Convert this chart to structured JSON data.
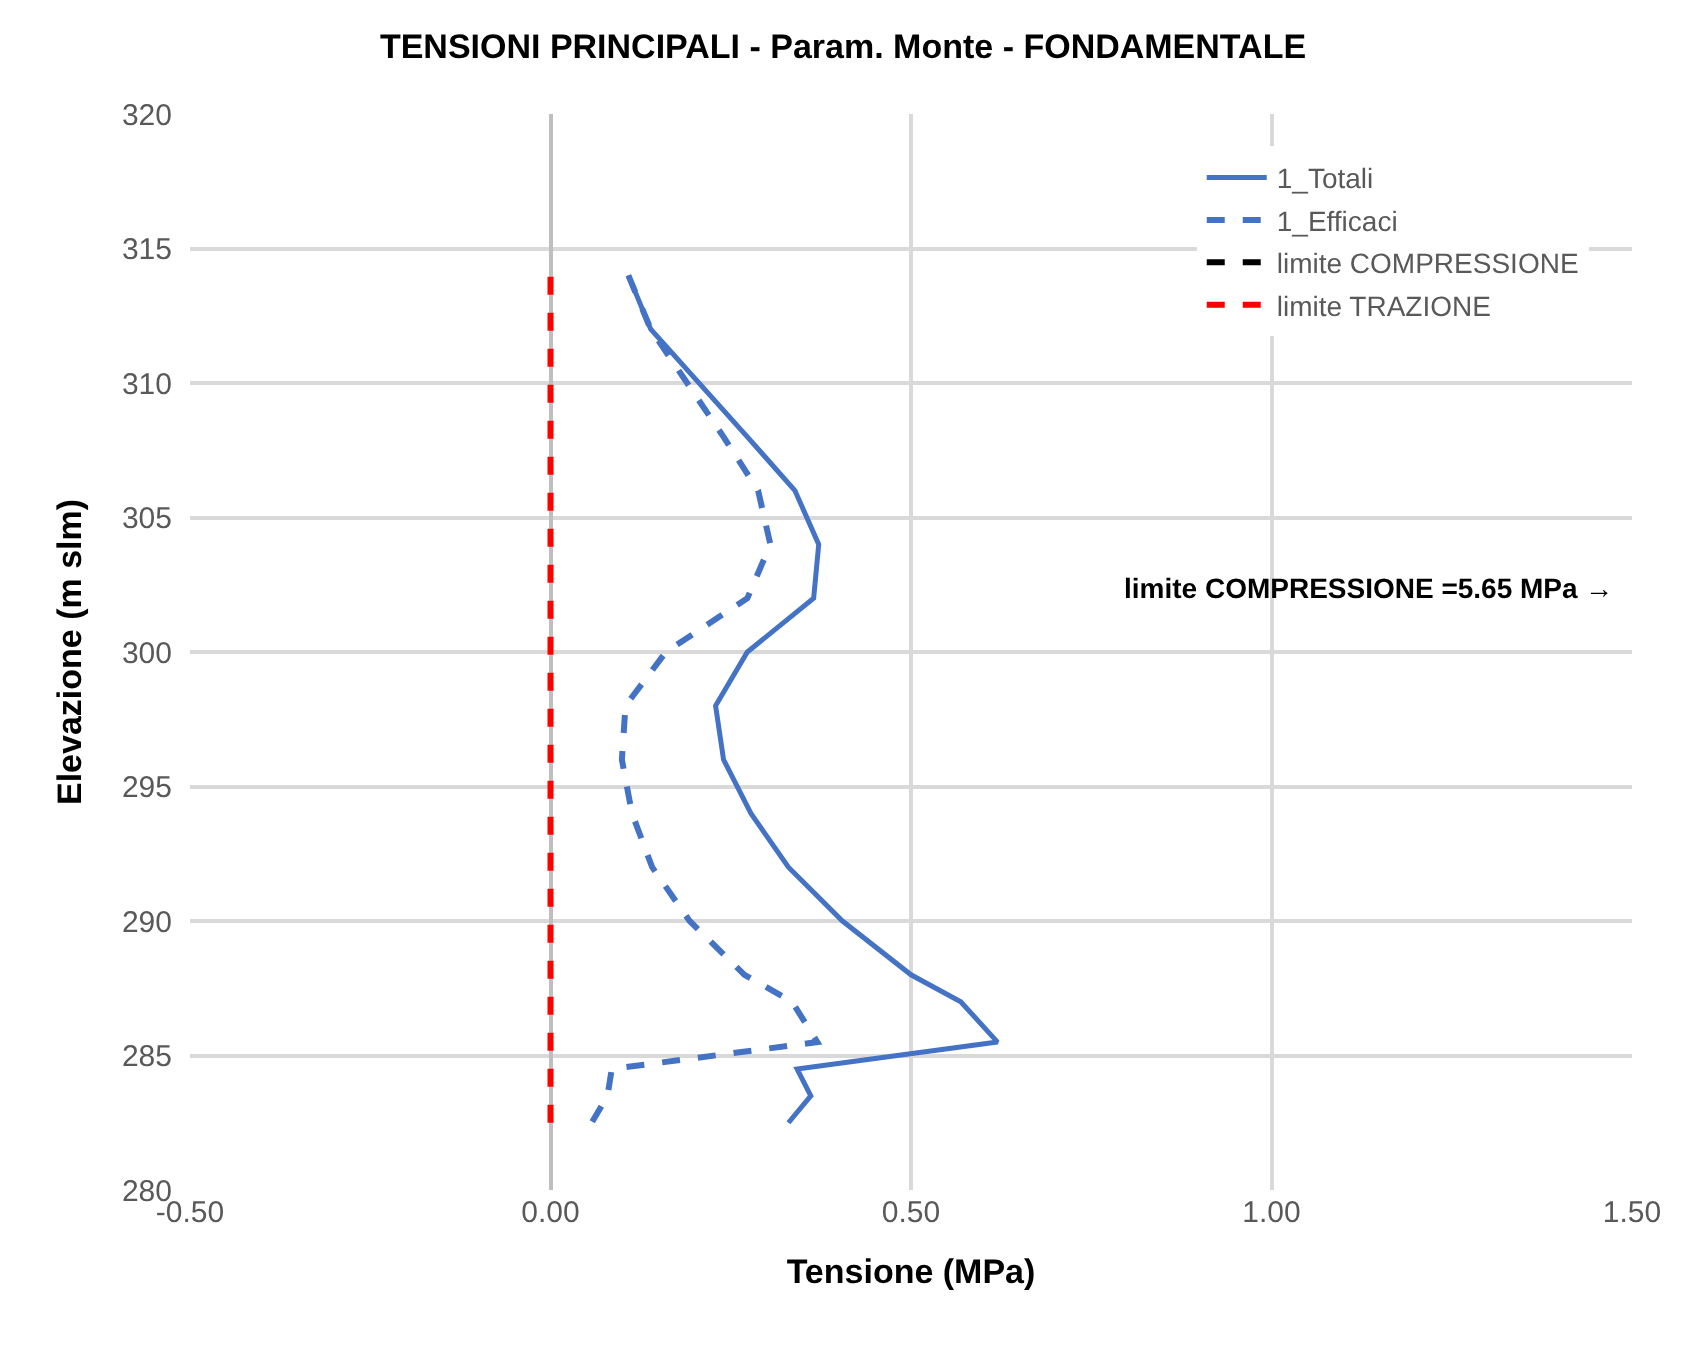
{
  "chart_data": {
    "type": "line",
    "title": "TENSIONI PRINCIPALI - Param. Monte - FONDAMENTALE",
    "xlabel": "Tensione (MPa)",
    "ylabel": "Elevazione (m slm)",
    "series": [
      {
        "name": "1_Totali",
        "color": "#4472c4",
        "line_style": "solid",
        "x": [
          0.108,
          0.139,
          0.273,
          0.339,
          0.372,
          0.365,
          0.273,
          0.229,
          0.24,
          0.278,
          0.33,
          0.405,
          0.5,
          0.569,
          0.62,
          0.342,
          0.361,
          0.33
        ],
        "values": [
          314,
          312,
          308,
          306,
          304,
          302,
          300,
          298,
          296,
          294,
          292,
          290,
          288,
          287,
          285.5,
          284.5,
          283.5,
          282.5
        ]
      },
      {
        "name": "1_Efficaci",
        "color": "#4472c4",
        "line_style": "dashed",
        "x": [
          0.108,
          0.139,
          0.24,
          0.288,
          0.305,
          0.273,
          0.16,
          0.104,
          0.099,
          0.113,
          0.141,
          0.193,
          0.269,
          0.335,
          0.37,
          0.085,
          0.079,
          0.057
        ],
        "values": [
          314,
          312,
          308,
          306,
          304,
          302,
          300,
          298,
          296,
          294,
          292,
          290,
          288,
          287,
          285.5,
          284.5,
          283.5,
          282.5
        ]
      },
      {
        "name": "limite COMPRESSIONE",
        "color": "#000000",
        "line_style": "dashed",
        "x": [
          null,
          null
        ],
        "values": [
          null,
          null
        ]
      },
      {
        "name": "limite TRAZIONE",
        "color": "#ff0000",
        "line_style": "dashed",
        "x": [
          0,
          0
        ],
        "values": [
          282.5,
          314
        ]
      }
    ],
    "xlim": [
      -0.5,
      1.5
    ],
    "xticks": [
      {
        "value": -0.5,
        "label": "-0.50"
      },
      {
        "value": 0,
        "label": "0.00"
      },
      {
        "value": 0.5,
        "label": "0.50"
      },
      {
        "value": 1,
        "label": "1.00"
      },
      {
        "value": 1.5,
        "label": "1.50"
      }
    ],
    "ylim": [
      280,
      320
    ],
    "yticks": [
      280,
      285,
      290,
      295,
      300,
      305,
      310,
      315,
      320
    ],
    "grid": true,
    "legend": "top right",
    "marker": "none",
    "annotations": [
      "limite COMPRESSIONE =5.65 MPa →"
    ]
  }
}
